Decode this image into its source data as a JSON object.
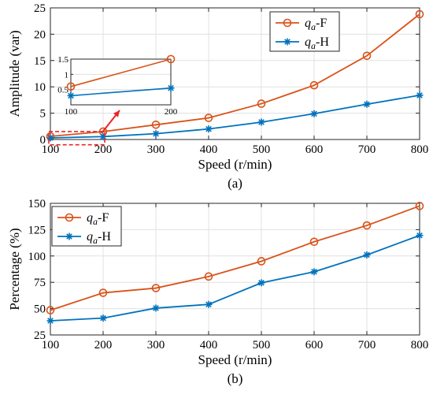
{
  "chart_data": [
    {
      "type": "line",
      "caption": "(a)",
      "xlabel": "Speed (r/min)",
      "ylabel": "Amplitude (var)",
      "xlim": [
        100,
        800
      ],
      "ylim": [
        0,
        25
      ],
      "xticks": [
        100,
        200,
        300,
        400,
        500,
        600,
        700,
        800
      ],
      "yticks": [
        0,
        5,
        10,
        15,
        20,
        25
      ],
      "grid": true,
      "legend_position": "top-right",
      "x": [
        100,
        200,
        300,
        400,
        500,
        600,
        700,
        800
      ],
      "series": [
        {
          "name_main": "q",
          "name_sub": "a",
          "name_suffix": "-F",
          "marker": "circle",
          "color": "#D95319",
          "values": [
            0.6,
            1.5,
            2.8,
            4.1,
            6.8,
            10.3,
            15.9,
            23.8
          ]
        },
        {
          "name_main": "q",
          "name_sub": "a",
          "name_suffix": "-H",
          "marker": "star",
          "color": "#0072BD",
          "values": [
            0.3,
            0.55,
            1.1,
            2.0,
            3.3,
            4.9,
            6.7,
            8.4
          ]
        }
      ],
      "inset": {
        "xlim": [
          100,
          200
        ],
        "ylim": [
          0,
          1.5
        ],
        "xticks": [
          100,
          200
        ],
        "yticks": [
          0.5,
          1,
          1.5
        ],
        "ytick_labels": [
          "0.5",
          "1",
          "1.5"
        ],
        "series": [
          {
            "x": [
              100,
              200
            ],
            "values": [
              0.6,
              1.5
            ]
          },
          {
            "x": [
              100,
              200
            ],
            "values": [
              0.3,
              0.55
            ]
          }
        ],
        "highlight_box": {
          "xlim": [
            100,
            200
          ],
          "ylim": [
            -1,
            1.5
          ]
        }
      }
    },
    {
      "type": "line",
      "caption": "(b)",
      "xlabel": "Speed (r/min)",
      "ylabel": "Percentage (%)",
      "xlim": [
        100,
        800
      ],
      "ylim": [
        25,
        150
      ],
      "xticks": [
        100,
        200,
        300,
        400,
        500,
        600,
        700,
        800
      ],
      "yticks": [
        25,
        50,
        75,
        100,
        125,
        150
      ],
      "grid": true,
      "legend_position": "top-left",
      "x": [
        100,
        200,
        300,
        400,
        500,
        600,
        700,
        800
      ],
      "series": [
        {
          "name_main": "q",
          "name_sub": "a",
          "name_suffix": "-F",
          "marker": "circle",
          "color": "#D95319",
          "values": [
            48.5,
            65,
            69.5,
            80.5,
            95,
            113.5,
            129,
            147.5
          ]
        },
        {
          "name_main": "q",
          "name_sub": "a",
          "name_suffix": "-H",
          "marker": "star",
          "color": "#0072BD",
          "values": [
            38.5,
            41,
            50.5,
            54,
            74.5,
            85,
            101,
            119.5
          ]
        }
      ]
    }
  ]
}
